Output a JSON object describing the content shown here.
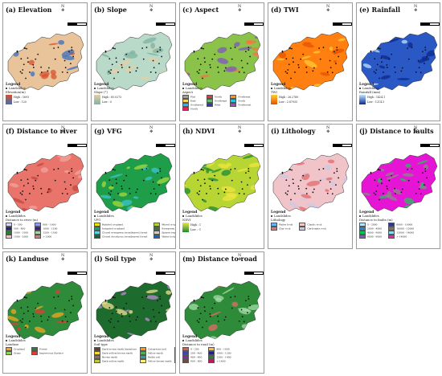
{
  "panels": [
    {
      "id": "a",
      "title": "(a) Elevation",
      "legend": {
        "title": "Legend",
        "landslides": "Landslides",
        "sub": "Elevation(m)",
        "high": "High : 1693",
        "low": "Low : 120"
      },
      "colors": {
        "fill": "#e9c49a",
        "accent": "#3a6fbd",
        "accent2": "#d8512b"
      }
    },
    {
      "id": "b",
      "title": "(b) Slope",
      "legend": {
        "title": "Legend",
        "landslides": "Landslides",
        "sub": "Slope (°)",
        "high": "High : 85.0273",
        "low": "Low : 0"
      },
      "colors": {
        "fill": "#b9d9c9",
        "accent": "#7fb2a0",
        "accent2": "#e2cfa6"
      }
    },
    {
      "id": "c",
      "title": "(c) Aspect",
      "legend": {
        "title": "Legend",
        "landslides": "Landslides",
        "sub": "Aspect",
        "classes": [
          {
            "label": "Flat",
            "color": "#9e9e9e"
          },
          {
            "label": "North",
            "color": "#e53935"
          },
          {
            "label": "Northeast",
            "color": "#ff9800"
          },
          {
            "label": "East",
            "color": "#ffd54f"
          },
          {
            "label": "Southeast",
            "color": "#66bb6a"
          },
          {
            "label": "South",
            "color": "#26c6da"
          },
          {
            "label": "Southwest",
            "color": "#29b6f6"
          },
          {
            "label": "West",
            "color": "#1e3fbf"
          },
          {
            "label": "Northwest",
            "color": "#ab47bc"
          },
          {
            "label": "North",
            "color": "#e91e63"
          }
        ]
      },
      "colors": {
        "fill": "#8bc34a",
        "accent": "#7e57c2",
        "accent2": "#ff7043"
      }
    },
    {
      "id": "d",
      "title": "(d) TWI",
      "legend": {
        "title": "Legend",
        "landslides": "Landslides",
        "sub": "TWI",
        "high": "High : 26.2789",
        "low": "Low : 2.87935"
      },
      "colors": {
        "fill": "#ff7f11",
        "accent": "#e65100",
        "accent2": "#ffcc33"
      }
    },
    {
      "id": "e",
      "title": "(e) Rainfall",
      "legend": {
        "title": "Legend",
        "landslides": "Landslides",
        "sub": "Rainfall (mm)",
        "high": "High : 1424.1",
        "low": "Low : 1214.3"
      },
      "colors": {
        "fill": "#2a58c4",
        "accent": "#0b2a8f",
        "accent2": "#bfe3ff"
      }
    },
    {
      "id": "f",
      "title": "(f) Distance to river",
      "legend": {
        "title": "Legend",
        "landslides": "Landslides",
        "sub": "Distance to river (m)",
        "classes": [
          {
            "label": "0 - 500",
            "color": "#d6d6ff"
          },
          {
            "label": "800 - 1000",
            "color": "#8b9cff"
          },
          {
            "label": "500 - 800",
            "color": "#1a237e"
          },
          {
            "label": "1000 - 1200",
            "color": "#4a148c"
          },
          {
            "label": "1000 - 1500",
            "color": "#2e7d32"
          },
          {
            "label": "1200 - 1500",
            "color": "#a5d6a7"
          },
          {
            "label": "1500 - 2000",
            "color": "#f8bbd0"
          },
          {
            "label": "> 2000",
            "color": "#e57373"
          }
        ]
      },
      "colors": {
        "fill": "#e8746b",
        "accent": "#c8463e",
        "accent2": "#f3a39c"
      }
    },
    {
      "id": "g",
      "title": "(g) VFG",
      "legend": {
        "title": "Legend",
        "landslides": "Landslides",
        "sub": "VFG",
        "classes": [
          {
            "label": "Rainfed cropland",
            "color": "#e6e600"
          },
          {
            "label": "Mixed cropland and shrubland",
            "color": "#b5d334"
          },
          {
            "label": "Irrigated cropland",
            "color": "#00a884"
          },
          {
            "label": "Evergreen shrubland",
            "color": "#2e7d32"
          },
          {
            "label": "Closed evergreen broadleaved forest",
            "color": "#5bcfe0"
          },
          {
            "label": "Sparse vegetation",
            "color": "#d7ccc8"
          },
          {
            "label": "Closed deciduous broadleaved forest",
            "color": "#006d2c"
          },
          {
            "label": "Water body",
            "color": "#1565c0"
          }
        ]
      },
      "colors": {
        "fill": "#1f9e4a",
        "accent": "#a8d83e",
        "accent2": "#3cc4d4"
      }
    },
    {
      "id": "h",
      "title": "(h) NDVI",
      "legend": {
        "title": "Legend",
        "landslides": "Landslides",
        "sub": "NDVI",
        "high": "High : 1",
        "low": "Low : -1"
      },
      "colors": {
        "fill": "#b8d633",
        "accent": "#1b8a3a",
        "accent2": "#f2e641"
      }
    },
    {
      "id": "i",
      "title": "(i) Lithology",
      "legend": {
        "title": "Legend",
        "landslides": "Landslides",
        "sub": "Lithology",
        "classes": [
          {
            "label": "Water body",
            "color": "#64b5f6"
          },
          {
            "label": "Clastic rock",
            "color": "#f4c6c6"
          },
          {
            "label": "Clay rock",
            "color": "#e57373"
          },
          {
            "label": "Carbonate rock",
            "color": "#c5cae9"
          }
        ]
      },
      "colors": {
        "fill": "#f1c4c9",
        "accent": "#c7c9ea",
        "accent2": "#e26a6a"
      }
    },
    {
      "id": "j",
      "title": "(j) Distance to faults",
      "legend": {
        "title": "Legend",
        "landslides": "Landslides",
        "sub": "Distance to faults (m)",
        "classes": [
          {
            "label": "0 - 2000",
            "color": "#b3e5fc"
          },
          {
            "label": "8000 - 10000",
            "color": "#283593"
          },
          {
            "label": "2000 - 4000",
            "color": "#1e88e5"
          },
          {
            "label": "10000 - 12000",
            "color": "#8d6e63"
          },
          {
            "label": "4000 - 6000",
            "color": "#00c853"
          },
          {
            "label": "12000 - 14000",
            "color": "#80deea"
          },
          {
            "label": "6000 - 8000",
            "color": "#7e57c2"
          },
          {
            "label": "> 14000",
            "color": "#e91ec6"
          }
        ]
      },
      "colors": {
        "fill": "#e614d4",
        "accent": "#8a8a8a",
        "accent2": "#1fc45a"
      }
    },
    {
      "id": "k",
      "title": "(k) Landuse",
      "legend": {
        "title": "Legend",
        "landslides": "Landslides",
        "sub": "Landuse",
        "classes": [
          {
            "label": "Cropland",
            "color": "#f5a623"
          },
          {
            "label": "Forest",
            "color": "#2e7d32"
          },
          {
            "label": "Grass",
            "color": "#9ccc65"
          },
          {
            "label": "Impervious Surface",
            "color": "#e53935"
          }
        ]
      },
      "colors": {
        "fill": "#2e8b3a",
        "accent": "#f5a623",
        "accent2": "#e53935"
      }
    },
    {
      "id": "l",
      "title": "(l) Soil type",
      "legend": {
        "title": "Legend",
        "landslides": "Landslides",
        "sub": "Soil type",
        "classes": [
          {
            "label": "Dark brown earth limestone",
            "color": "#5d4037"
          },
          {
            "label": "Calcareous soil",
            "color": "#ff9800"
          },
          {
            "label": "Rock",
            "color": "#757575"
          },
          {
            "label": "Dark yellow-brown earth",
            "color": "#fdd835"
          },
          {
            "label": "Yellow earth",
            "color": "#4caf50"
          },
          {
            "label": "Red soil",
            "color": "#f06292"
          },
          {
            "label": "Brown earth",
            "color": "#8d6e63"
          },
          {
            "label": "Paddy soil",
            "color": "#26a69a"
          },
          {
            "label": "Purple soil",
            "color": "#ab47bc"
          },
          {
            "label": "Dark yellow earth",
            "color": "#c0ca33"
          },
          {
            "label": "Yellow-brown earth",
            "color": "#fff176"
          },
          {
            "label": "Calcareous soil",
            "color": "#ffffff"
          }
        ]
      },
      "colors": {
        "fill": "#1e6b2e",
        "accent": "#c08ad8",
        "accent2": "#f4e28f"
      }
    },
    {
      "id": "m",
      "title": "(m) Distance to road",
      "legend": {
        "title": "Legend",
        "landslides": "Landslides",
        "sub": "Distance to road (m)",
        "classes": [
          {
            "label": "0 - 200",
            "color": "#ef5350"
          },
          {
            "label": "800 - 1000",
            "color": "#ffb74d"
          },
          {
            "label": "200 - 400",
            "color": "#3949ab"
          },
          {
            "label": "1000 - 1200",
            "color": "#1a237e"
          },
          {
            "label": "400 - 600",
            "color": "#8e24aa"
          },
          {
            "label": "1200 - 1400",
            "color": "#2e7d32"
          },
          {
            "label": "600 - 800",
            "color": "#6d4c41"
          },
          {
            "label": "> 1400",
            "color": "#c2185b"
          }
        ]
      },
      "colors": {
        "fill": "#2e8b3a",
        "accent": "#e46a6a",
        "accent2": "#a8dca8"
      }
    }
  ],
  "north_label": "N"
}
